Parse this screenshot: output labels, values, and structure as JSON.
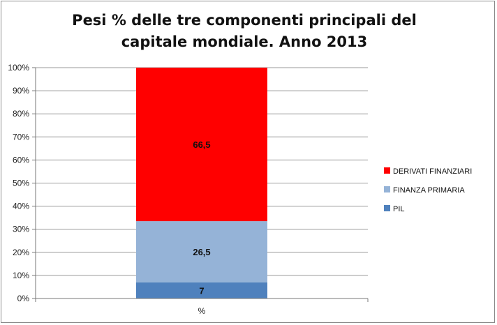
{
  "chart_data": {
    "type": "bar",
    "stacked": true,
    "title": "Pesi % delle tre componenti principali del capitale mondiale. Anno 2013",
    "categories": [
      "%"
    ],
    "series": [
      {
        "name": "PIL",
        "values": [
          7
        ],
        "color": "#4f81bd",
        "label": "7"
      },
      {
        "name": "FINANZA PRIMARIA",
        "values": [
          26.5
        ],
        "color": "#95b3d7",
        "label": "26,5"
      },
      {
        "name": "DERIVATI FINANZIARI",
        "values": [
          66.5
        ],
        "color": "#ff0000",
        "label": "66,5"
      }
    ],
    "ylim": [
      0,
      100
    ],
    "yticks": [
      "0%",
      "10%",
      "20%",
      "30%",
      "40%",
      "50%",
      "60%",
      "70%",
      "80%",
      "90%",
      "100%"
    ],
    "grid": true,
    "legend_position": "right",
    "legend_order": [
      "DERIVATI FINANZIARI",
      "FINANZA PRIMARIA",
      "PIL"
    ]
  }
}
